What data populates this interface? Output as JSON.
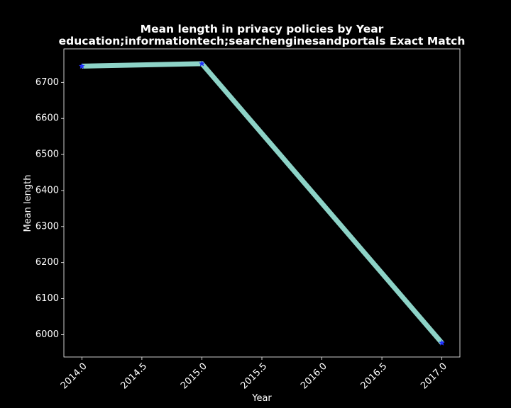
{
  "chart_data": {
    "type": "line",
    "title": "Mean length in privacy policies by Year",
    "subtitle": "education;informationtech;searchenginesandportals Exact Match",
    "xlabel": "Year",
    "ylabel": "Mean length",
    "xlim": [
      2013.85,
      2017.15
    ],
    "ylim": [
      5938,
      6793
    ],
    "xticks": [
      "2014.0",
      "2014.5",
      "2015.0",
      "2015.5",
      "2016.0",
      "2016.5",
      "2017.0"
    ],
    "yticks": [
      "6000",
      "6100",
      "6200",
      "6300",
      "6400",
      "6500",
      "6600",
      "6700"
    ],
    "grid": false,
    "series": [
      {
        "x": [
          2014,
          2015,
          2017
        ],
        "y": [
          6745,
          6752,
          5977
        ],
        "line_color": "#8dd3c7",
        "marker": "star",
        "marker_color": "#1f2fff"
      }
    ]
  }
}
